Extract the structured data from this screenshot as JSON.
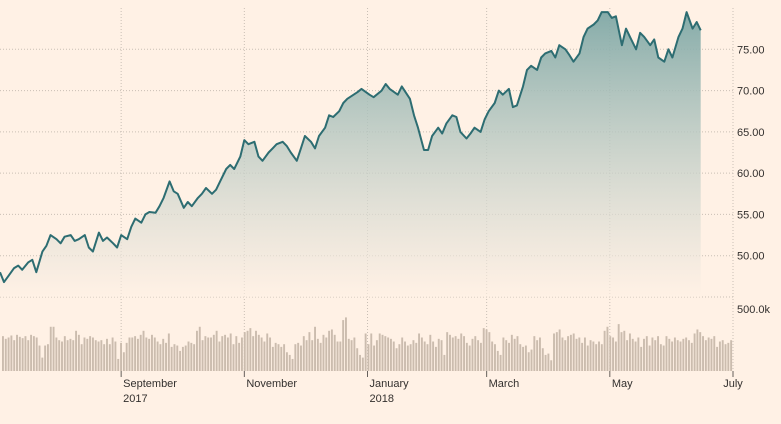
{
  "chart_data": {
    "type": "line",
    "title": "",
    "xlabel": "",
    "ylabel": "",
    "ylim": [
      45,
      80
    ],
    "y_ticks": [
      "50.00",
      "55.00",
      "60.00",
      "65.00",
      "70.00",
      "75.00"
    ],
    "x_ticks": [
      {
        "label": "September",
        "sub": "2017",
        "date": "2017-09-01"
      },
      {
        "label": "November",
        "sub": "",
        "date": "2017-11-01"
      },
      {
        "label": "January",
        "sub": "2018",
        "date": "2018-01-01"
      },
      {
        "label": "March",
        "sub": "",
        "date": "2018-03-01"
      },
      {
        "label": "May",
        "sub": "",
        "date": "2018-05-01"
      },
      {
        "label": "July",
        "sub": "",
        "date": "2018-07-01"
      }
    ],
    "grid": true,
    "series": [
      {
        "name": "",
        "color": "#2d6d72",
        "points": [
          [
            "2017-07-03",
            48.0
          ],
          [
            "2017-07-05",
            46.8
          ],
          [
            "2017-07-07",
            47.5
          ],
          [
            "2017-07-10",
            48.5
          ],
          [
            "2017-07-12",
            48.8
          ],
          [
            "2017-07-14",
            48.3
          ],
          [
            "2017-07-17",
            49.2
          ],
          [
            "2017-07-19",
            49.5
          ],
          [
            "2017-07-21",
            48.0
          ],
          [
            "2017-07-24",
            50.5
          ],
          [
            "2017-07-26",
            51.2
          ],
          [
            "2017-07-28",
            52.5
          ],
          [
            "2017-07-31",
            52.0
          ],
          [
            "2017-08-02",
            51.5
          ],
          [
            "2017-08-04",
            52.3
          ],
          [
            "2017-08-07",
            52.5
          ],
          [
            "2017-08-09",
            51.8
          ],
          [
            "2017-08-11",
            52.0
          ],
          [
            "2017-08-14",
            52.5
          ],
          [
            "2017-08-16",
            51.0
          ],
          [
            "2017-08-18",
            50.5
          ],
          [
            "2017-08-21",
            52.8
          ],
          [
            "2017-08-23",
            51.8
          ],
          [
            "2017-08-25",
            52.2
          ],
          [
            "2017-08-28",
            51.5
          ],
          [
            "2017-08-30",
            51.0
          ],
          [
            "2017-09-01",
            52.5
          ],
          [
            "2017-09-04",
            52.0
          ],
          [
            "2017-09-06",
            53.5
          ],
          [
            "2017-09-08",
            54.5
          ],
          [
            "2017-09-11",
            54.0
          ],
          [
            "2017-09-13",
            55.0
          ],
          [
            "2017-09-15",
            55.3
          ],
          [
            "2017-09-18",
            55.2
          ],
          [
            "2017-09-20",
            56.0
          ],
          [
            "2017-09-22",
            57.0
          ],
          [
            "2017-09-25",
            59.0
          ],
          [
            "2017-09-27",
            57.8
          ],
          [
            "2017-09-29",
            57.5
          ],
          [
            "2017-10-02",
            55.8
          ],
          [
            "2017-10-04",
            56.5
          ],
          [
            "2017-10-06",
            56.0
          ],
          [
            "2017-10-09",
            57.0
          ],
          [
            "2017-10-11",
            57.5
          ],
          [
            "2017-10-13",
            58.2
          ],
          [
            "2017-10-16",
            57.5
          ],
          [
            "2017-10-18",
            58.0
          ],
          [
            "2017-10-20",
            59.0
          ],
          [
            "2017-10-23",
            60.5
          ],
          [
            "2017-10-25",
            61.0
          ],
          [
            "2017-10-27",
            60.5
          ],
          [
            "2017-10-30",
            62.0
          ],
          [
            "2017-11-01",
            64.0
          ],
          [
            "2017-11-03",
            63.5
          ],
          [
            "2017-11-06",
            63.8
          ],
          [
            "2017-11-08",
            62.0
          ],
          [
            "2017-11-10",
            61.5
          ],
          [
            "2017-11-13",
            62.5
          ],
          [
            "2017-11-15",
            63.0
          ],
          [
            "2017-11-17",
            63.5
          ],
          [
            "2017-11-20",
            63.8
          ],
          [
            "2017-11-22",
            63.3
          ],
          [
            "2017-11-24",
            62.5
          ],
          [
            "2017-11-27",
            61.5
          ],
          [
            "2017-11-29",
            63.0
          ],
          [
            "2017-12-01",
            64.5
          ],
          [
            "2017-12-04",
            63.8
          ],
          [
            "2017-12-06",
            63.0
          ],
          [
            "2017-12-08",
            64.5
          ],
          [
            "2017-12-11",
            65.5
          ],
          [
            "2017-12-13",
            67.0
          ],
          [
            "2017-12-15",
            66.8
          ],
          [
            "2017-12-18",
            67.5
          ],
          [
            "2017-12-20",
            68.5
          ],
          [
            "2017-12-22",
            69.0
          ],
          [
            "2017-12-27",
            69.8
          ],
          [
            "2017-12-29",
            70.2
          ],
          [
            "2018-01-02",
            69.5
          ],
          [
            "2018-01-04",
            69.2
          ],
          [
            "2018-01-08",
            70.0
          ],
          [
            "2018-01-10",
            70.8
          ],
          [
            "2018-01-12",
            70.2
          ],
          [
            "2018-01-16",
            69.5
          ],
          [
            "2018-01-18",
            70.5
          ],
          [
            "2018-01-22",
            69.0
          ],
          [
            "2018-01-24",
            67.0
          ],
          [
            "2018-01-26",
            65.5
          ],
          [
            "2018-01-29",
            62.8
          ],
          [
            "2018-01-31",
            62.8
          ],
          [
            "2018-02-02",
            64.5
          ],
          [
            "2018-02-05",
            65.5
          ],
          [
            "2018-02-07",
            64.8
          ],
          [
            "2018-02-09",
            66.0
          ],
          [
            "2018-02-12",
            67.0
          ],
          [
            "2018-02-14",
            66.8
          ],
          [
            "2018-02-16",
            65.0
          ],
          [
            "2018-02-19",
            64.2
          ],
          [
            "2018-02-21",
            64.8
          ],
          [
            "2018-02-23",
            65.5
          ],
          [
            "2018-02-26",
            65.0
          ],
          [
            "2018-02-28",
            66.5
          ],
          [
            "2018-03-02",
            67.5
          ],
          [
            "2018-03-05",
            68.5
          ],
          [
            "2018-03-07",
            70.0
          ],
          [
            "2018-03-09",
            69.5
          ],
          [
            "2018-03-12",
            70.2
          ],
          [
            "2018-03-14",
            68.0
          ],
          [
            "2018-03-16",
            68.2
          ],
          [
            "2018-03-19",
            70.5
          ],
          [
            "2018-03-21",
            72.5
          ],
          [
            "2018-03-23",
            73.0
          ],
          [
            "2018-03-26",
            72.5
          ],
          [
            "2018-03-28",
            74.0
          ],
          [
            "2018-03-30",
            74.5
          ],
          [
            "2018-04-02",
            74.8
          ],
          [
            "2018-04-04",
            74.0
          ],
          [
            "2018-04-06",
            75.5
          ],
          [
            "2018-04-09",
            75.0
          ],
          [
            "2018-04-11",
            74.3
          ],
          [
            "2018-04-13",
            73.5
          ],
          [
            "2018-04-16",
            74.5
          ],
          [
            "2018-04-18",
            76.5
          ],
          [
            "2018-04-20",
            77.5
          ],
          [
            "2018-04-23",
            78.0
          ],
          [
            "2018-04-25",
            78.5
          ],
          [
            "2018-04-27",
            79.5
          ],
          [
            "2018-04-30",
            79.5
          ],
          [
            "2018-05-02",
            78.8
          ],
          [
            "2018-05-04",
            79.0
          ],
          [
            "2018-05-07",
            75.5
          ],
          [
            "2018-05-09",
            77.5
          ],
          [
            "2018-05-11",
            76.5
          ],
          [
            "2018-05-14",
            75.0
          ],
          [
            "2018-05-16",
            77.0
          ],
          [
            "2018-05-18",
            76.5
          ],
          [
            "2018-05-21",
            75.5
          ],
          [
            "2018-05-23",
            76.2
          ],
          [
            "2018-05-25",
            74.0
          ],
          [
            "2018-05-28",
            73.5
          ],
          [
            "2018-05-30",
            75.0
          ],
          [
            "2018-06-01",
            74.0
          ],
          [
            "2018-06-04",
            76.5
          ],
          [
            "2018-06-06",
            77.5
          ],
          [
            "2018-06-08",
            79.5
          ],
          [
            "2018-06-11",
            77.5
          ],
          [
            "2018-06-13",
            78.3
          ],
          [
            "2018-06-15",
            77.3
          ]
        ]
      }
    ],
    "volume": {
      "max_label": "500.0k",
      "max_value": 500000,
      "values": [
        260000,
        240000,
        250000,
        265000,
        230000,
        270000,
        255000,
        245000,
        260000,
        230000,
        270000,
        260000,
        250000,
        190000,
        100000,
        190000,
        200000,
        330000,
        330000,
        250000,
        230000,
        220000,
        260000,
        230000,
        240000,
        230000,
        300000,
        270000,
        200000,
        250000,
        240000,
        260000,
        250000,
        230000,
        220000,
        230000,
        200000,
        240000,
        200000,
        250000,
        220000,
        90000,
        210000,
        140000,
        210000,
        250000,
        250000,
        260000,
        240000,
        270000,
        300000,
        250000,
        240000,
        270000,
        250000,
        220000,
        200000,
        240000,
        210000,
        280000,
        180000,
        200000,
        190000,
        150000,
        180000,
        190000,
        220000,
        210000,
        200000,
        300000,
        330000,
        230000,
        260000,
        250000,
        250000,
        270000,
        300000,
        220000,
        260000,
        270000,
        250000,
        280000,
        200000,
        260000,
        210000,
        250000,
        290000,
        300000,
        320000,
        260000,
        300000,
        270000,
        250000,
        220000,
        280000,
        250000,
        180000,
        210000,
        200000,
        180000,
        200000,
        140000,
        120000,
        90000,
        200000,
        210000,
        190000,
        260000,
        230000,
        290000,
        230000,
        330000,
        240000,
        210000,
        270000,
        250000,
        300000,
        310000,
        270000,
        220000,
        220000,
        380000,
        400000,
        240000,
        230000,
        250000,
        170000,
        120000,
        100000,
        280000,
        200000,
        280000,
        190000,
        230000,
        280000,
        270000,
        260000,
        250000,
        240000,
        220000,
        170000,
        200000,
        250000,
        220000,
        190000,
        200000,
        230000,
        210000,
        280000,
        250000,
        220000,
        200000,
        270000,
        220000,
        180000,
        240000,
        230000,
        120000,
        290000,
        270000,
        250000,
        260000,
        240000,
        280000,
        260000,
        210000,
        190000,
        240000,
        260000,
        230000,
        210000,
        320000,
        310000,
        290000,
        220000,
        200000,
        150000,
        120000,
        250000,
        230000,
        210000,
        270000,
        240000,
        260000,
        200000,
        180000,
        190000,
        140000,
        160000,
        260000,
        230000,
        250000,
        170000,
        120000,
        130000,
        80000,
        280000,
        290000,
        310000,
        250000,
        230000,
        260000,
        270000,
        280000,
        240000,
        250000,
        210000,
        250000,
        190000,
        230000,
        220000,
        200000,
        220000,
        200000,
        300000,
        330000,
        260000,
        250000,
        220000,
        350000,
        290000,
        300000,
        230000,
        280000,
        240000,
        220000,
        250000,
        180000,
        240000,
        260000,
        190000,
        250000,
        230000,
        260000,
        200000,
        190000,
        260000,
        240000,
        220000,
        250000,
        230000,
        220000,
        240000,
        250000,
        230000,
        210000,
        280000,
        310000,
        290000,
        260000,
        230000,
        250000,
        240000,
        260000,
        180000,
        220000,
        230000,
        200000,
        210000,
        230000
      ]
    }
  }
}
